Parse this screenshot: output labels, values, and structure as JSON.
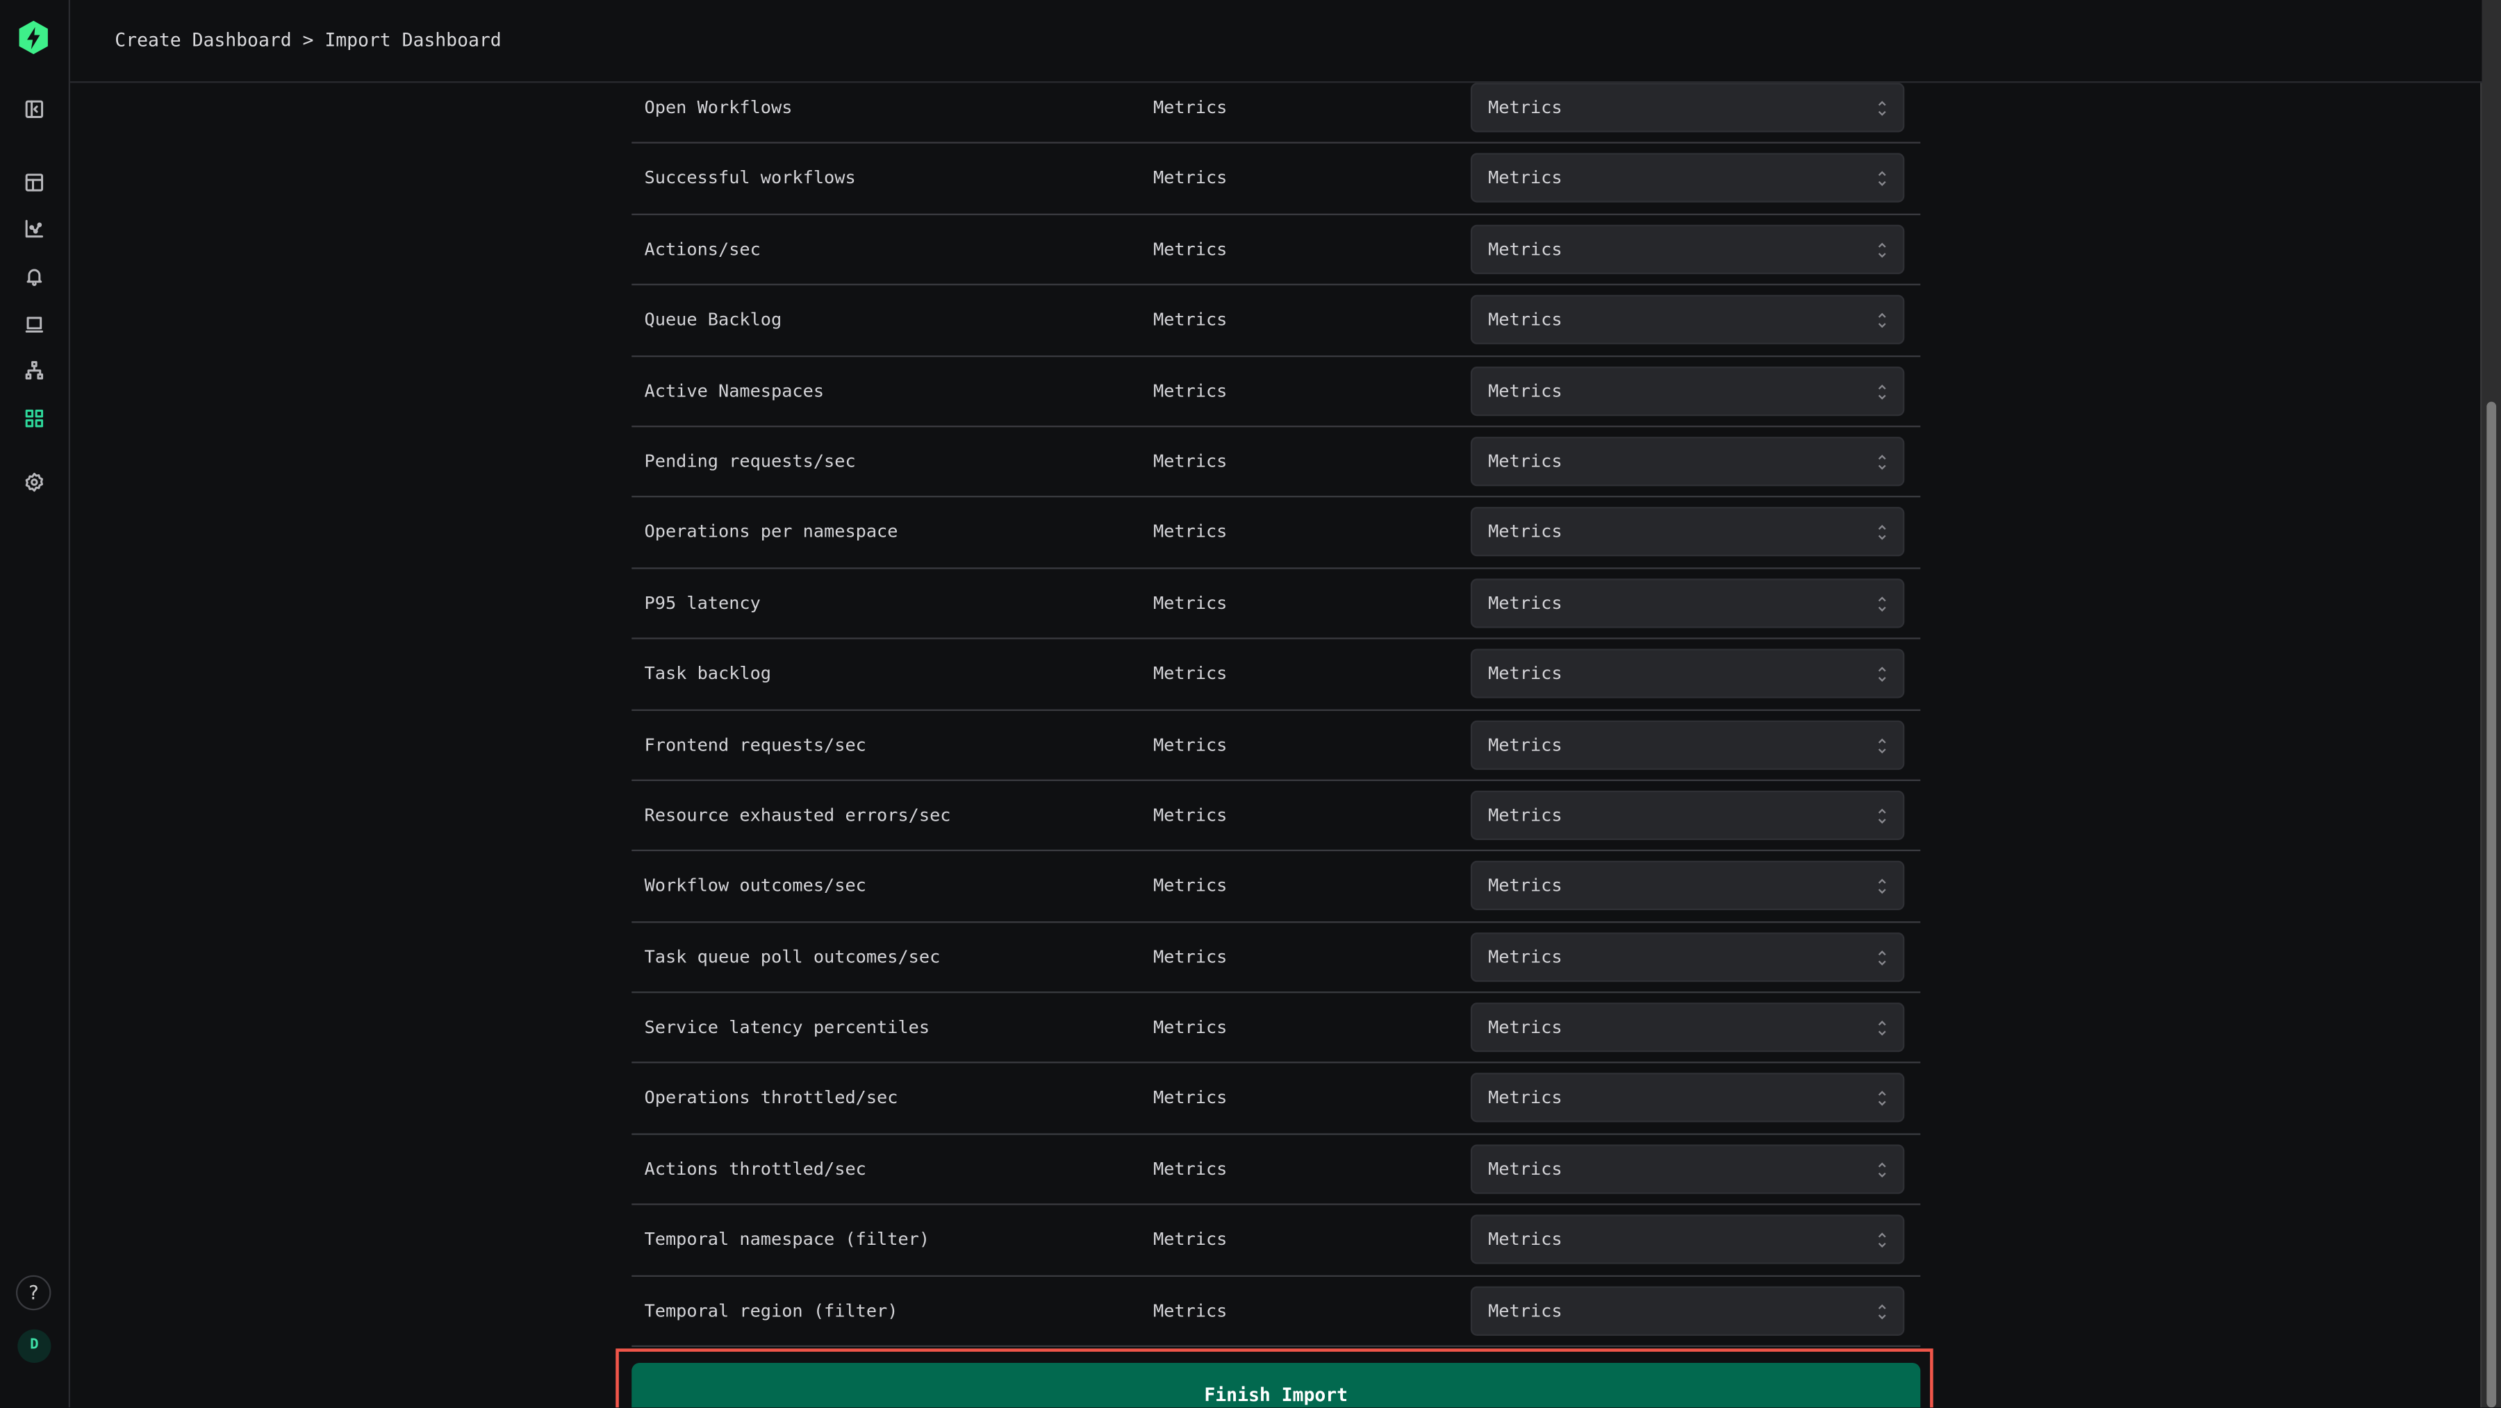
{
  "colors": {
    "accent": "#2ed89b",
    "button": "#02694f",
    "highlight_outline": "#f0564a",
    "background": "#0f1012",
    "select_bg": "#26272b"
  },
  "sidebar": {
    "logo": "lightning-hexagon-logo",
    "items": [
      {
        "icon": "panel-collapse-icon"
      },
      {
        "icon": "table-grid-icon"
      },
      {
        "icon": "chart-icon"
      },
      {
        "icon": "bell-icon"
      },
      {
        "icon": "laptop-icon"
      },
      {
        "icon": "network-icon"
      },
      {
        "icon": "apps-grid-icon",
        "active": true
      },
      {
        "icon": "gear-icon"
      }
    ],
    "help_label": "?",
    "avatar_initial": "D"
  },
  "header": {
    "breadcrumb": "Create Dashboard > Import Dashboard"
  },
  "rows": [
    {
      "name": "Open Workflows",
      "type": "Metrics",
      "selected": "Metrics"
    },
    {
      "name": "Successful workflows",
      "type": "Metrics",
      "selected": "Metrics"
    },
    {
      "name": "Actions/sec",
      "type": "Metrics",
      "selected": "Metrics"
    },
    {
      "name": "Queue Backlog",
      "type": "Metrics",
      "selected": "Metrics"
    },
    {
      "name": "Active Namespaces",
      "type": "Metrics",
      "selected": "Metrics"
    },
    {
      "name": "Pending requests/sec",
      "type": "Metrics",
      "selected": "Metrics"
    },
    {
      "name": "Operations per namespace",
      "type": "Metrics",
      "selected": "Metrics"
    },
    {
      "name": "P95 latency",
      "type": "Metrics",
      "selected": "Metrics"
    },
    {
      "name": "Task backlog",
      "type": "Metrics",
      "selected": "Metrics"
    },
    {
      "name": "Frontend requests/sec",
      "type": "Metrics",
      "selected": "Metrics"
    },
    {
      "name": "Resource exhausted errors/sec",
      "type": "Metrics",
      "selected": "Metrics"
    },
    {
      "name": "Workflow outcomes/sec",
      "type": "Metrics",
      "selected": "Metrics"
    },
    {
      "name": "Task queue poll outcomes/sec",
      "type": "Metrics",
      "selected": "Metrics"
    },
    {
      "name": "Service latency percentiles",
      "type": "Metrics",
      "selected": "Metrics"
    },
    {
      "name": "Operations throttled/sec",
      "type": "Metrics",
      "selected": "Metrics"
    },
    {
      "name": "Actions throttled/sec",
      "type": "Metrics",
      "selected": "Metrics"
    },
    {
      "name": "Temporal namespace (filter)",
      "type": "Metrics",
      "selected": "Metrics"
    },
    {
      "name": "Temporal region (filter)",
      "type": "Metrics",
      "selected": "Metrics"
    }
  ],
  "finish_button": {
    "label": "Finish Import"
  }
}
